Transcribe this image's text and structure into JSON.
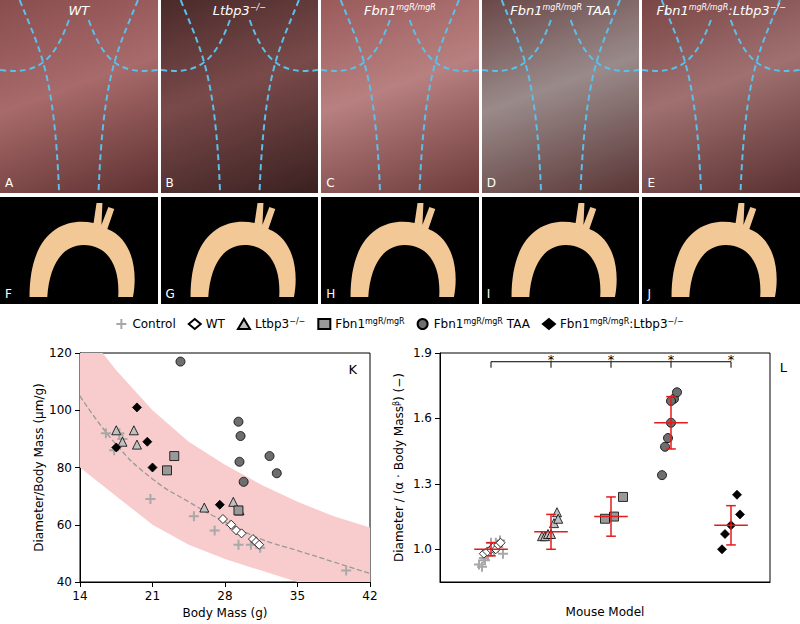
{
  "panels": {
    "top": [
      {
        "letter": "A",
        "title": [
          {
            "text": "WT"
          }
        ]
      },
      {
        "letter": "B",
        "title": [
          {
            "text": "Ltbp3"
          },
          {
            "text": "−/−",
            "sup": true
          }
        ]
      },
      {
        "letter": "C",
        "title": [
          {
            "text": "Fbn1"
          },
          {
            "text": "mgR/mgR",
            "sup": true
          }
        ]
      },
      {
        "letter": "D",
        "title": [
          {
            "text": "Fbn1"
          },
          {
            "text": "mgR/mgR",
            "sup": true
          },
          {
            "text": " TAA"
          }
        ]
      },
      {
        "letter": "E",
        "title": [
          {
            "text": "Fbn1"
          },
          {
            "text": "mgR/mgR",
            "sup": true
          },
          {
            "text": ":Ltbp3"
          },
          {
            "text": "−/−",
            "sup": true
          }
        ]
      }
    ],
    "bottom": [
      {
        "letter": "F"
      },
      {
        "letter": "G"
      },
      {
        "letter": "H"
      },
      {
        "letter": "I"
      },
      {
        "letter": "J"
      }
    ]
  },
  "chart_data": [
    {
      "type": "scatter",
      "title": "K",
      "xlabel": "Body Mass (g)",
      "ylabel": "Diameter/Body Mass (μm/g)",
      "xlim": [
        14,
        42
      ],
      "xticks": [
        14,
        21,
        28,
        35,
        42
      ],
      "ylim": [
        40,
        120
      ],
      "yticks": [
        40,
        60,
        80,
        100,
        120
      ],
      "grid": false,
      "legend": "top",
      "series": [
        {
          "name": [
            {
              "text": "Control"
            }
          ],
          "color": "#a8a8a8",
          "marker": "plus",
          "x": [
            16.5,
            17.3,
            17.8,
            18.1,
            20.8,
            25,
            27,
            28.5,
            29.3,
            30.5,
            31.4,
            39.7
          ],
          "y": [
            92,
            86,
            92,
            90,
            69,
            63,
            58,
            60,
            53,
            53,
            52,
            44
          ]
        },
        {
          "name": [
            {
              "text": "WT"
            }
          ],
          "color": "#ffffff",
          "marker": "diamond",
          "x": [
            27.8,
            28.6,
            29.1,
            29.6,
            30.7,
            31,
            31.3
          ],
          "y": [
            62,
            60,
            58,
            57,
            55,
            54,
            53
          ]
        },
        {
          "name": [
            {
              "text": "Ltbp3"
            },
            {
              "text": "−/−",
              "sup": true
            }
          ],
          "color": "#c0c0c0",
          "marker": "triangle",
          "x": [
            17.5,
            18.1,
            19.2,
            19.5,
            26,
            28.8,
            29.4
          ],
          "y": [
            93,
            89,
            93,
            88,
            66,
            68,
            65
          ]
        },
        {
          "name": [
            {
              "text": "Fbn1"
            },
            {
              "text": "mgR/mgR",
              "sup": true
            }
          ],
          "color": "#999999",
          "marker": "square",
          "x": [
            22.4,
            23.1,
            29.3
          ],
          "y": [
            79,
            84,
            65
          ]
        },
        {
          "name": [
            {
              "text": "Fbn1"
            },
            {
              "text": "mgR/mgR",
              "sup": true
            },
            {
              "text": " TAA"
            }
          ],
          "color": "#6e6e6e",
          "marker": "circle",
          "x": [
            23.7,
            29.3,
            29.5,
            29.4,
            29.8,
            32.3,
            33
          ],
          "y": [
            117,
            96,
            91,
            82,
            75,
            84,
            78
          ]
        },
        {
          "name": [
            {
              "text": "Fbn1"
            },
            {
              "text": "mgR/mgR",
              "sup": true
            },
            {
              "text": ":Ltbp3"
            },
            {
              "text": "−/−",
              "sup": true
            }
          ],
          "color": "#000000",
          "marker": "diamond",
          "x": [
            17.5,
            19.5,
            20.5,
            21,
            27.5
          ],
          "y": [
            87,
            101,
            89,
            80,
            67
          ]
        }
      ],
      "curve": {
        "color": "#999999",
        "line_style": "dashed",
        "x": [
          14,
          17.5,
          21,
          24.5,
          28,
          31.5,
          35,
          38.5,
          42
        ],
        "y": [
          105,
          88,
          76,
          68,
          61,
          55,
          51,
          47,
          43
        ]
      },
      "band": {
        "color": "#f8cccc",
        "x": [
          14,
          17.5,
          21,
          24.5,
          28,
          31.5,
          35,
          38.5,
          42
        ],
        "lower": [
          80,
          70,
          60,
          53,
          48,
          44,
          40,
          37,
          35
        ],
        "upper": [
          130,
          114,
          100,
          89,
          81,
          74,
          68,
          63,
          59
        ]
      }
    },
    {
      "type": "scatter",
      "title": "L",
      "xlabel": "Mouse Model",
      "ylabel": [
        {
          "text": "Diameter / (α · Body Mass"
        },
        {
          "text": "β",
          "sup": true
        },
        {
          "text": ") (−)"
        }
      ],
      "xlim": [
        -0.85,
        4.65
      ],
      "xticks": [],
      "ylim": [
        0.85,
        1.9
      ],
      "yticks": [
        {
          "value": 1,
          "label": "1.0"
        },
        1.3,
        1.6,
        1.9
      ],
      "grid": false,
      "tick_labels": "y",
      "series": [
        {
          "name": [
            {
              "text": "Control"
            }
          ],
          "color": "#a8a8a8",
          "marker": "plus",
          "x": [
            -0.2,
            -0.15,
            -0.12,
            -0.1,
            -0.05,
            0,
            0.05,
            0.08,
            0.1,
            0.12,
            0.15,
            0.2
          ],
          "y": [
            0.93,
            0.92,
            0.96,
            0.95,
            0.97,
            1.03,
            0.99,
            1.03,
            1.02,
            1.01,
            1.04,
            0.98
          ]
        },
        {
          "name": [
            {
              "text": "WT"
            }
          ],
          "color": "#ffffff",
          "marker": "diamond",
          "x": [
            -0.12,
            -0.06,
            0,
            0.04,
            0.08,
            0.12,
            0.16
          ],
          "y": [
            0.98,
            0.99,
            1.0,
            1.01,
            1.0,
            1.02,
            1.03
          ]
        },
        {
          "name": [
            {
              "text": "Ltbp3"
            },
            {
              "text": "−/−",
              "sup": true
            }
          ],
          "color": "#c0c0c0",
          "marker": "triangle",
          "x": [
            0.85,
            0.9,
            0.95,
            1.0,
            1.05,
            1.1,
            1.12
          ],
          "y": [
            1.06,
            1.06,
            1.07,
            1.07,
            1.12,
            1.17,
            1.14
          ]
        },
        {
          "name": [
            {
              "text": "Fbn1"
            },
            {
              "text": "mgR/mgR",
              "sup": true
            }
          ],
          "color": "#999999",
          "marker": "square",
          "x": [
            1.9,
            2.05,
            2.2
          ],
          "y": [
            1.14,
            1.15,
            1.24
          ]
        },
        {
          "name": [
            {
              "text": "Fbn1"
            },
            {
              "text": "mgR/mgR",
              "sup": true
            },
            {
              "text": " TAA"
            }
          ],
          "color": "#6e6e6e",
          "marker": "circle",
          "x": [
            2.85,
            2.9,
            2.95,
            3.0,
            3.05,
            3.1,
            3.0
          ],
          "y": [
            1.34,
            1.47,
            1.51,
            1.58,
            1.69,
            1.72,
            1.68
          ]
        },
        {
          "name": [
            {
              "text": "Fbn1"
            },
            {
              "text": "mgR/mgR",
              "sup": true
            },
            {
              "text": ":Ltbp3"
            },
            {
              "text": "−/−",
              "sup": true
            }
          ],
          "color": "#000000",
          "marker": "diamond",
          "x": [
            3.85,
            3.9,
            4.0,
            4.1,
            4.15
          ],
          "y": [
            1.0,
            1.07,
            1.11,
            1.25,
            1.16
          ]
        }
      ],
      "error_bars": {
        "color": "#e41a1c",
        "x": [
          0,
          1,
          2,
          3,
          4
        ],
        "mean": [
          1.0,
          1.08,
          1.15,
          1.58,
          1.11
        ],
        "sd": [
          0.03,
          0.08,
          0.09,
          0.12,
          0.09
        ]
      },
      "annotations": [
        {
          "text": "*",
          "y": 1.86,
          "from": 0,
          "to": [
            1,
            2,
            3,
            4
          ]
        }
      ]
    }
  ]
}
